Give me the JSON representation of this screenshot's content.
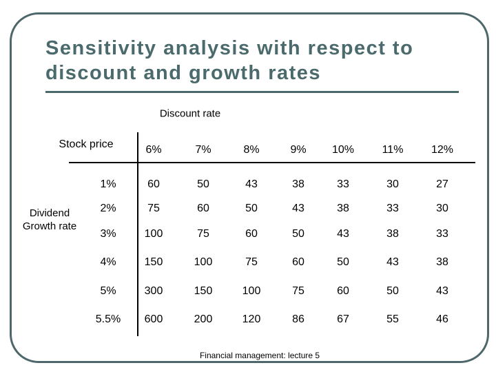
{
  "title": "Sensitivity analysis with respect to discount and growth rates",
  "column_group_label": "Discount rate",
  "corner_label": "Stock price",
  "row_group_label": "Dividend Growth rate",
  "table": {
    "columns": [
      "6%",
      "7%",
      "8%",
      "9%",
      "10%",
      "11%",
      "12%"
    ],
    "rows": [
      {
        "label": "1%",
        "cells": [
          60,
          50,
          43,
          38,
          33,
          30,
          27
        ]
      },
      {
        "label": "2%",
        "cells": [
          75,
          60,
          50,
          43,
          38,
          33,
          30
        ]
      },
      {
        "label": "3%",
        "cells": [
          100,
          75,
          60,
          50,
          43,
          38,
          33
        ]
      },
      {
        "label": "4%",
        "cells": [
          150,
          100,
          75,
          60,
          50,
          43,
          38
        ]
      },
      {
        "label": "5%",
        "cells": [
          300,
          150,
          100,
          75,
          60,
          50,
          43
        ]
      },
      {
        "label": "5.5%",
        "cells": [
          600,
          200,
          120,
          86,
          67,
          55,
          46
        ]
      }
    ]
  },
  "footer": "Financial management: lecture 5"
}
